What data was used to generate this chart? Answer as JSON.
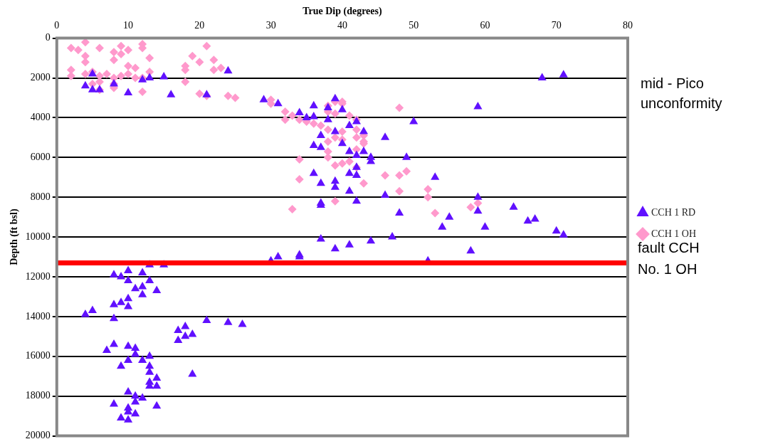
{
  "chart_data": {
    "type": "scatter",
    "xlabel": "True Dip (degrees)",
    "ylabel": "Depth (ft bsl)",
    "xlim": [
      0,
      80
    ],
    "xticks": [
      0,
      10,
      20,
      30,
      40,
      50,
      60,
      70,
      80
    ],
    "ylim": [
      20000,
      0
    ],
    "yticks": [
      0,
      2000,
      4000,
      6000,
      8000,
      10000,
      12000,
      14000,
      16000,
      18000,
      20000
    ],
    "grid": "y",
    "legend": "right",
    "annotations": [
      "mid - Pico unconformity"
    ],
    "ref_lines": [
      {
        "axis": "y",
        "value": 11300,
        "label": "fault CCH No. 1 OH",
        "color": "#ff0000"
      }
    ],
    "series": [
      {
        "name": "CCH 1 RD",
        "color": "#6010ff",
        "marker": "triangle",
        "x": [
          5,
          4,
          6,
          5,
          8,
          10,
          12,
          13,
          15,
          16,
          21,
          24,
          68,
          71,
          29,
          31,
          36,
          39,
          38,
          36,
          34,
          35,
          38,
          40,
          41,
          43,
          42,
          39,
          37,
          46,
          50,
          59,
          36,
          37,
          40,
          41,
          42,
          44,
          44,
          42,
          41,
          42,
          36,
          37,
          39,
          39,
          41,
          37,
          37,
          42,
          46,
          49,
          53,
          48,
          59,
          59,
          55,
          54,
          60,
          64,
          66,
          67,
          70,
          71,
          37,
          39,
          41,
          44,
          47,
          58,
          30,
          31,
          34,
          34,
          52,
          43,
          8,
          9,
          10,
          10,
          11,
          12,
          12,
          13,
          13,
          14,
          15,
          12,
          10,
          10,
          8,
          9,
          4,
          5,
          8,
          17,
          17,
          18,
          18,
          19,
          21,
          24,
          26,
          7,
          8,
          10,
          11,
          11,
          12,
          13,
          13,
          13,
          9,
          10,
          19,
          13,
          14,
          14,
          13,
          8,
          10,
          11,
          11,
          12,
          14,
          9,
          10,
          10,
          11,
          10
        ],
        "values": [
          1800,
          2400,
          2600,
          2600,
          2300,
          2750,
          2100,
          2000,
          1950,
          2850,
          2850,
          1650,
          2000,
          1850,
          3100,
          3300,
          3400,
          3050,
          3500,
          3950,
          3750,
          4000,
          4100,
          3600,
          4400,
          4700,
          4200,
          4700,
          4900,
          5000,
          4200,
          3450,
          5400,
          5500,
          5300,
          5700,
          5900,
          6000,
          6200,
          6500,
          6800,
          6900,
          6800,
          7300,
          7200,
          7500,
          7700,
          8300,
          8400,
          8200,
          7900,
          6000,
          7000,
          8800,
          8000,
          8700,
          9000,
          9500,
          9500,
          8500,
          9200,
          9100,
          9700,
          9900,
          10100,
          10600,
          10400,
          10200,
          10000,
          10700,
          11200,
          11000,
          11000,
          10900,
          11200,
          5700,
          11900,
          12000,
          11700,
          12200,
          12600,
          12500,
          11800,
          11400,
          12200,
          12700,
          11400,
          12900,
          13100,
          13500,
          13400,
          13300,
          13900,
          13700,
          14100,
          14700,
          15200,
          14500,
          15000,
          14900,
          14200,
          14300,
          14400,
          15700,
          15400,
          15500,
          15600,
          15900,
          16200,
          16000,
          16500,
          16800,
          16500,
          16200,
          16900,
          17300,
          17100,
          17500,
          17500,
          18400,
          17800,
          18000,
          18300,
          18100,
          18500,
          19100,
          18800,
          19200,
          18900,
          18600
        ]
      },
      {
        "name": "CCH 1 OH",
        "color": "#ff99cc",
        "marker": "diamond",
        "x": [
          2,
          3,
          4,
          4,
          4,
          6,
          8,
          8,
          9,
          9,
          10,
          10,
          11,
          12,
          12,
          13,
          2,
          2,
          4,
          5,
          6,
          6,
          7,
          8,
          8,
          8,
          9,
          10,
          11,
          12,
          12,
          13,
          18,
          18,
          18,
          19,
          20,
          21,
          22,
          22,
          23,
          20,
          21,
          24,
          25,
          6,
          5,
          30,
          30,
          32,
          33,
          32,
          34,
          35,
          36,
          37,
          38,
          38,
          39,
          40,
          40,
          39,
          41,
          48,
          38,
          39,
          40,
          38,
          40,
          42,
          42,
          42,
          43,
          43,
          42,
          43,
          41,
          40,
          39,
          38,
          38,
          34,
          34,
          42,
          43,
          39,
          46,
          48,
          49,
          48,
          52,
          52,
          33,
          53,
          58,
          59
        ],
        "values": [
          500,
          600,
          200,
          900,
          1200,
          500,
          700,
          1100,
          400,
          800,
          600,
          1400,
          1500,
          300,
          500,
          1000,
          1600,
          1900,
          1800,
          1700,
          1900,
          2200,
          1800,
          2000,
          2300,
          2500,
          1900,
          1800,
          2000,
          2000,
          2700,
          1700,
          1400,
          1600,
          2200,
          900,
          1200,
          400,
          1100,
          1600,
          1500,
          2800,
          2900,
          2900,
          3000,
          2600,
          2300,
          3100,
          3300,
          3700,
          3900,
          4100,
          4100,
          4200,
          4300,
          4400,
          3400,
          3700,
          3200,
          3200,
          3300,
          3800,
          3900,
          3500,
          4600,
          5000,
          5100,
          5200,
          4700,
          4100,
          4600,
          5000,
          5200,
          5300,
          5600,
          4900,
          6200,
          6300,
          6400,
          5700,
          6000,
          6100,
          7100,
          6500,
          7300,
          8200,
          6900,
          6900,
          6700,
          7700,
          7600,
          8000,
          8600,
          8800,
          8500,
          8300
        ]
      }
    ]
  }
}
